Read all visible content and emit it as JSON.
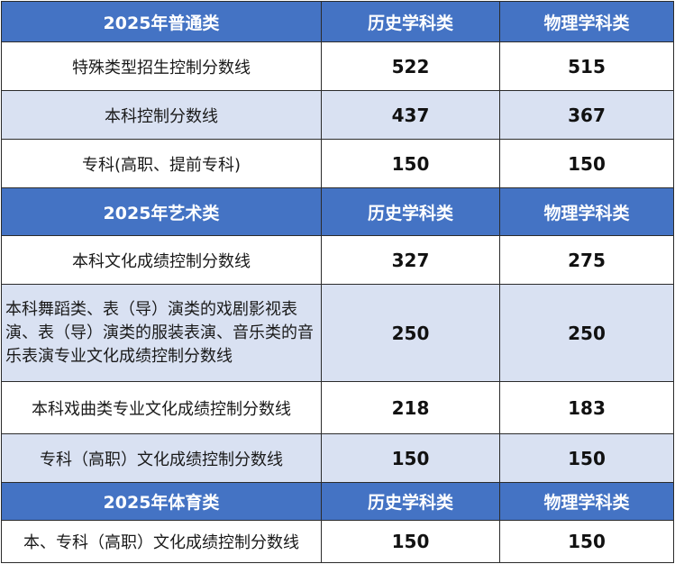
{
  "sections": [
    {
      "header": {
        "title": "2025年普通类",
        "col_history": "历史学科类",
        "col_physics": "物理学科类"
      },
      "rows": [
        {
          "label": "特殊类型招生控制分数线",
          "history": "522",
          "physics": "515"
        },
        {
          "label": "本科控制分数线",
          "history": "437",
          "physics": "367"
        },
        {
          "label": "专科(高职、提前专科)",
          "history": "150",
          "physics": "150"
        }
      ]
    },
    {
      "header": {
        "title": "2025年艺术类",
        "col_history": "历史学科类",
        "col_physics": "物理学科类"
      },
      "rows": [
        {
          "label": "本科文化成绩控制分数线",
          "history": "327",
          "physics": "275"
        },
        {
          "label": "本科舞蹈类、表（导）演类的戏剧影视表演、表（导）演类的服装表演、音乐类的音乐表演专业文化成绩控制分数线",
          "history": "250",
          "physics": "250"
        },
        {
          "label": "本科戏曲类专业文化成绩控制分数线",
          "history": "218",
          "physics": "183"
        },
        {
          "label": "专科（高职）文化成绩控制分数线",
          "history": "150",
          "physics": "150"
        }
      ]
    },
    {
      "header": {
        "title": "2025年体育类",
        "col_history": "历史学科类",
        "col_physics": "物理学科类"
      },
      "rows": [
        {
          "label": "本、专科（高职）文化成绩控制分数线",
          "history": "150",
          "physics": "150"
        }
      ]
    }
  ],
  "colors": {
    "header_bg": "#4473c4",
    "header_text": "#ffffff",
    "alt_row_bg": "#d9e1f2",
    "row_bg": "#ffffff"
  }
}
